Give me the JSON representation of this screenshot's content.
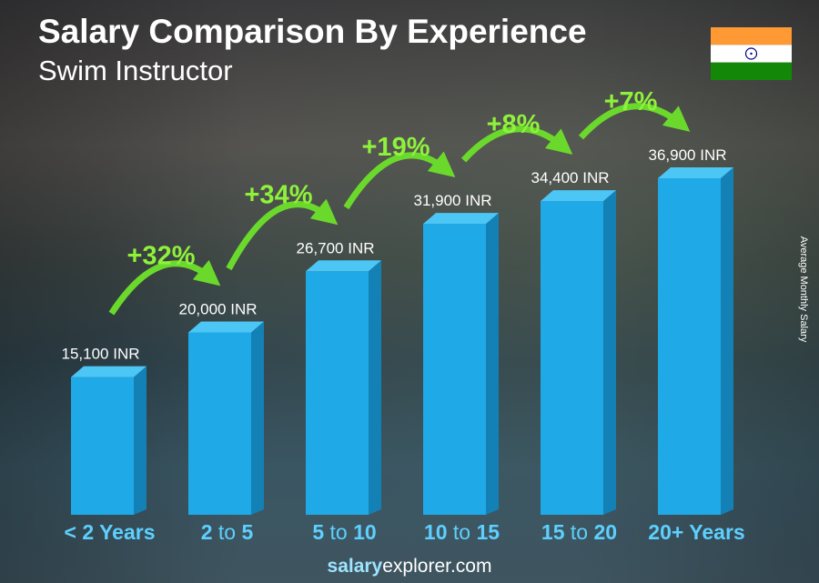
{
  "chart_data": {
    "type": "bar",
    "title": "Salary Comparison By Experience",
    "subtitle": "Swim Instructor",
    "ylabel": "Average Monthly Salary",
    "categories": [
      [
        "< 2 Years"
      ],
      [
        "2",
        "to",
        "5"
      ],
      [
        "5",
        "to",
        "10"
      ],
      [
        "10",
        "to",
        "15"
      ],
      [
        "15",
        "to",
        "20"
      ],
      [
        "20+ Years"
      ]
    ],
    "values": [
      15100,
      20000,
      26700,
      31900,
      34400,
      36900
    ],
    "value_labels": [
      "15,100 INR",
      "20,000 INR",
      "26,700 INR",
      "31,900 INR",
      "34,400 INR",
      "36,900 INR"
    ],
    "changes": [
      "+32%",
      "+34%",
      "+19%",
      "+8%",
      "+7%"
    ],
    "colors": {
      "bar_front": "#1fa9e6",
      "bar_side": "#1381b5",
      "bar_top": "#4cc6f5",
      "change": "#8ef23a",
      "category": "#5dd0ff"
    }
  },
  "footer": {
    "bold": "salary",
    "rest": "explorer",
    "tld": ".com"
  },
  "flag": "india-flag"
}
